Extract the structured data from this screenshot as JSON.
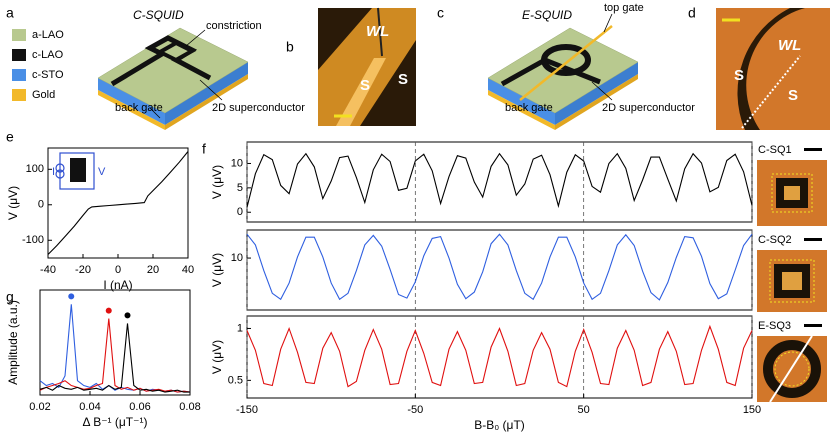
{
  "panel_labels": [
    "a",
    "b",
    "c",
    "d",
    "e",
    "f",
    "g"
  ],
  "legend": [
    {
      "label": "a-LAO",
      "color": "#b8c98f"
    },
    {
      "label": "c-LAO",
      "color": "#111111"
    },
    {
      "label": "c-STO",
      "color": "#4a8fe6"
    },
    {
      "label": "Gold",
      "color": "#f2b92a"
    }
  ],
  "device_a": {
    "title": "C-SQUID",
    "labels": [
      "constriction",
      "back gate",
      "2D superconductor"
    ]
  },
  "image_b": {
    "labels": [
      "WL",
      "S",
      "S"
    ]
  },
  "device_c": {
    "title": "E-SQUID",
    "labels": [
      "top gate",
      "back gate",
      "2D superconductor"
    ]
  },
  "image_d": {
    "labels": [
      "WL",
      "S",
      "S"
    ]
  },
  "inset_e": {
    "labels": [
      "I",
      "V"
    ]
  },
  "images_f": [
    "C-SQ1",
    "C-SQ2",
    "E-SQ3"
  ],
  "chart_data": [
    {
      "type": "line",
      "xlabel": "I (nA)",
      "ylabel": "V (μV)",
      "color": "#000000",
      "x": [
        -40,
        -35,
        -30,
        -25,
        -20,
        -17,
        -15,
        -10,
        -5,
        0,
        5,
        10,
        15,
        17,
        20,
        25,
        30,
        35,
        40
      ],
      "values": [
        -140,
        -115,
        -88,
        -60,
        -30,
        -12,
        -6,
        -4,
        -2,
        0,
        2,
        4,
        6,
        25,
        40,
        65,
        92,
        120,
        150
      ],
      "xlim": [
        -40,
        40
      ],
      "xticks": [
        -40,
        -20,
        0,
        20,
        40
      ],
      "ylim": [
        -150,
        160
      ],
      "yticks": [
        -100,
        0,
        100
      ]
    },
    {
      "type": "line",
      "ylabel": "V (μV)",
      "color": "#000000",
      "x": [
        -150,
        -145,
        -140,
        -135,
        -130,
        -125,
        -120,
        -115,
        -110,
        -105,
        -100,
        -95,
        -90,
        -85,
        -80,
        -75,
        -70,
        -65,
        -60,
        -55,
        -50,
        -45,
        -40,
        -35,
        -30,
        -25,
        -20,
        -15,
        -10,
        -5,
        0,
        5,
        10,
        15,
        20,
        25,
        30,
        35,
        40,
        45,
        50,
        55,
        60,
        65,
        70,
        75,
        80,
        85,
        90,
        95,
        100,
        105,
        110,
        115,
        120,
        125,
        130,
        135,
        140,
        145,
        150
      ],
      "values": [
        1,
        7.9,
        11.8,
        10.8,
        5.5,
        3.8,
        9.9,
        12,
        9.3,
        2.8,
        6.4,
        11.2,
        11.5,
        7.1,
        2,
        8.7,
        11.9,
        10.4,
        4.5,
        4.9,
        10.5,
        11.9,
        8.5,
        1.8,
        7.3,
        11.6,
        11.1,
        6.2,
        3.1,
        9.4,
        12,
        9.7,
        3.5,
        5.8,
        10.9,
        11.7,
        7.7,
        1.3,
        8.2,
        11.8,
        10.5,
        5.3,
        4.1,
        10,
        12,
        9,
        2.4,
        6.6,
        11.3,
        11.3,
        6.8,
        2.3,
        8.9,
        12,
        10.1,
        4.2,
        5.1,
        10.6,
        11.9,
        8.3,
        1.4
      ],
      "xlim": [
        -150,
        150
      ],
      "ylim": [
        -2,
        14.4
      ],
      "yticks": [
        0,
        5,
        10
      ]
    },
    {
      "type": "line",
      "ylabel": "V (μV)",
      "color": "#2f5fe0",
      "x": [
        -150,
        -145,
        -140,
        -135,
        -130,
        -125,
        -120,
        -115,
        -110,
        -105,
        -100,
        -95,
        -90,
        -85,
        -80,
        -75,
        -70,
        -65,
        -60,
        -55,
        -50,
        -45,
        -40,
        -35,
        -30,
        -25,
        -20,
        -15,
        -10,
        -5,
        0,
        5,
        10,
        15,
        20,
        25,
        30,
        35,
        40,
        45,
        50,
        55,
        60,
        65,
        70,
        75,
        80,
        85,
        90,
        95,
        100,
        105,
        110,
        115,
        120,
        125,
        130,
        135,
        140,
        145,
        150
      ],
      "values": [
        14,
        12.2,
        7.9,
        4.1,
        3.1,
        5.8,
        10.2,
        13.5,
        13.5,
        10.2,
        5.8,
        3.1,
        4.1,
        7.9,
        12.2,
        13.8,
        12,
        8.1,
        3.9,
        3.3,
        6,
        10.4,
        13.3,
        13.6,
        10,
        5.6,
        3.2,
        4.3,
        7.7,
        12.4,
        14,
        12.2,
        7.9,
        4.1,
        3.1,
        5.8,
        10.2,
        13.5,
        13.5,
        10.2,
        5.8,
        3.1,
        4.1,
        7.9,
        12.2,
        13.9,
        12.1,
        7.8,
        4.2,
        3,
        5.9,
        10.1,
        13.6,
        13.4,
        10.3,
        5.7,
        3.2,
        4,
        8,
        12.1,
        14
      ],
      "xlim": [
        -150,
        150
      ],
      "ylim": [
        1.3,
        14.7
      ],
      "yticks": [
        10
      ]
    },
    {
      "type": "line",
      "xlabel": "B-B₀ (μT)",
      "ylabel": "V (μV)",
      "color": "#e01010",
      "x": [
        -150,
        -145,
        -140,
        -135,
        -130,
        -125,
        -120,
        -115,
        -110,
        -105,
        -100,
        -95,
        -90,
        -85,
        -80,
        -75,
        -70,
        -65,
        -60,
        -55,
        -50,
        -45,
        -40,
        -35,
        -30,
        -25,
        -20,
        -15,
        -10,
        -5,
        0,
        5,
        10,
        15,
        20,
        25,
        30,
        35,
        40,
        45,
        50,
        55,
        60,
        65,
        70,
        75,
        80,
        85,
        90,
        95,
        100,
        105,
        110,
        115,
        120,
        125,
        130,
        135,
        140,
        145,
        150
      ],
      "values": [
        0.98,
        0.79,
        0.47,
        0.45,
        0.8,
        1.0,
        0.77,
        0.48,
        0.47,
        0.81,
        0.96,
        0.78,
        0.44,
        0.49,
        0.79,
        0.99,
        0.8,
        0.46,
        0.47,
        0.78,
        0.98,
        0.76,
        0.48,
        0.45,
        0.8,
        0.97,
        0.79,
        0.47,
        0.48,
        0.82,
        1.0,
        0.78,
        0.45,
        0.47,
        0.79,
        0.96,
        0.8,
        0.48,
        0.44,
        0.78,
        0.99,
        0.77,
        0.47,
        0.46,
        0.81,
        0.98,
        0.79,
        0.45,
        0.48,
        0.8,
        0.97,
        0.78,
        0.46,
        0.47,
        0.79,
        1.02,
        0.8,
        0.48,
        0.45,
        0.81,
        0.98
      ],
      "xlim": [
        -150,
        150
      ],
      "xticks": [
        -150,
        -50,
        50,
        150
      ],
      "ylim": [
        0.33,
        1.12
      ],
      "yticks": [
        0.5,
        1
      ]
    },
    {
      "type": "line",
      "xlabel": "Δ B⁻¹ (μT⁻¹)",
      "ylabel": "Amplitude (a.u.)",
      "xlim": [
        0.02,
        0.08
      ],
      "xticks": [
        0.02,
        0.04,
        0.06,
        0.08
      ],
      "ylim": [
        0,
        1.1
      ],
      "x": [
        0.02,
        0.0225,
        0.025,
        0.0275,
        0.03,
        0.0325,
        0.035,
        0.0375,
        0.04,
        0.0425,
        0.045,
        0.0475,
        0.05,
        0.0525,
        0.055,
        0.0575,
        0.06,
        0.0625,
        0.065,
        0.0675,
        0.07,
        0.0725,
        0.075,
        0.0775,
        0.08
      ],
      "series": [
        {
          "color": "#2f5fe0",
          "values": [
            0.15,
            0.1,
            0.12,
            0.08,
            0.2,
            0.95,
            0.15,
            0.1,
            0.08,
            0.12,
            0.06,
            0.1,
            0.05,
            0.08,
            0.06,
            0.05,
            0.07,
            0.04,
            0.06,
            0.05,
            0.04,
            0.05,
            0.03,
            0.04,
            0.03
          ]
        },
        {
          "color": "#e01010",
          "values": [
            0.05,
            0.08,
            0.1,
            0.12,
            0.15,
            0.1,
            0.08,
            0.06,
            0.07,
            0.1,
            0.12,
            0.8,
            0.1,
            0.06,
            0.08,
            0.05,
            0.07,
            0.04,
            0.05,
            0.06,
            0.04,
            0.05,
            0.03,
            0.04,
            0.03
          ]
        },
        {
          "color": "#000000",
          "values": [
            0.06,
            0.08,
            0.05,
            0.1,
            0.07,
            0.06,
            0.08,
            0.05,
            0.06,
            0.07,
            0.05,
            0.1,
            0.06,
            0.08,
            0.75,
            0.1,
            0.05,
            0.06,
            0.04,
            0.05,
            0.03,
            0.04,
            0.05,
            0.03,
            0.03
          ]
        }
      ]
    }
  ]
}
